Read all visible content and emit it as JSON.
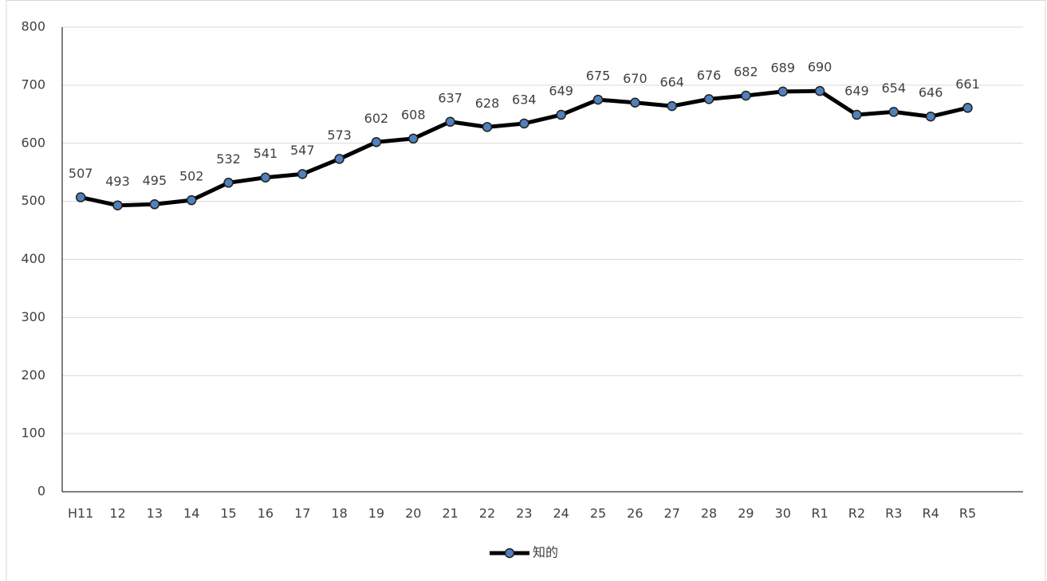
{
  "chart_data": {
    "type": "line",
    "categories": [
      "H11",
      "12",
      "13",
      "14",
      "15",
      "16",
      "17",
      "18",
      "19",
      "20",
      "21",
      "22",
      "23",
      "24",
      "25",
      "26",
      "27",
      "28",
      "29",
      "30",
      "R1",
      "R2",
      "R3",
      "R4",
      "R5",
      null
    ],
    "series": [
      {
        "name": "知的",
        "color": "#000000",
        "marker_color": "#4f81bd",
        "values": [
          507,
          493,
          495,
          502,
          532,
          541,
          547,
          573,
          602,
          608,
          637,
          628,
          634,
          649,
          675,
          670,
          664,
          676,
          682,
          689,
          690,
          649,
          654,
          646,
          661,
          null
        ]
      }
    ],
    "ylim": [
      0,
      800
    ],
    "yticks": [
      0,
      100,
      200,
      300,
      400,
      500,
      600,
      700,
      800
    ],
    "grid": true,
    "legend": "bottom",
    "data_labels": true
  }
}
